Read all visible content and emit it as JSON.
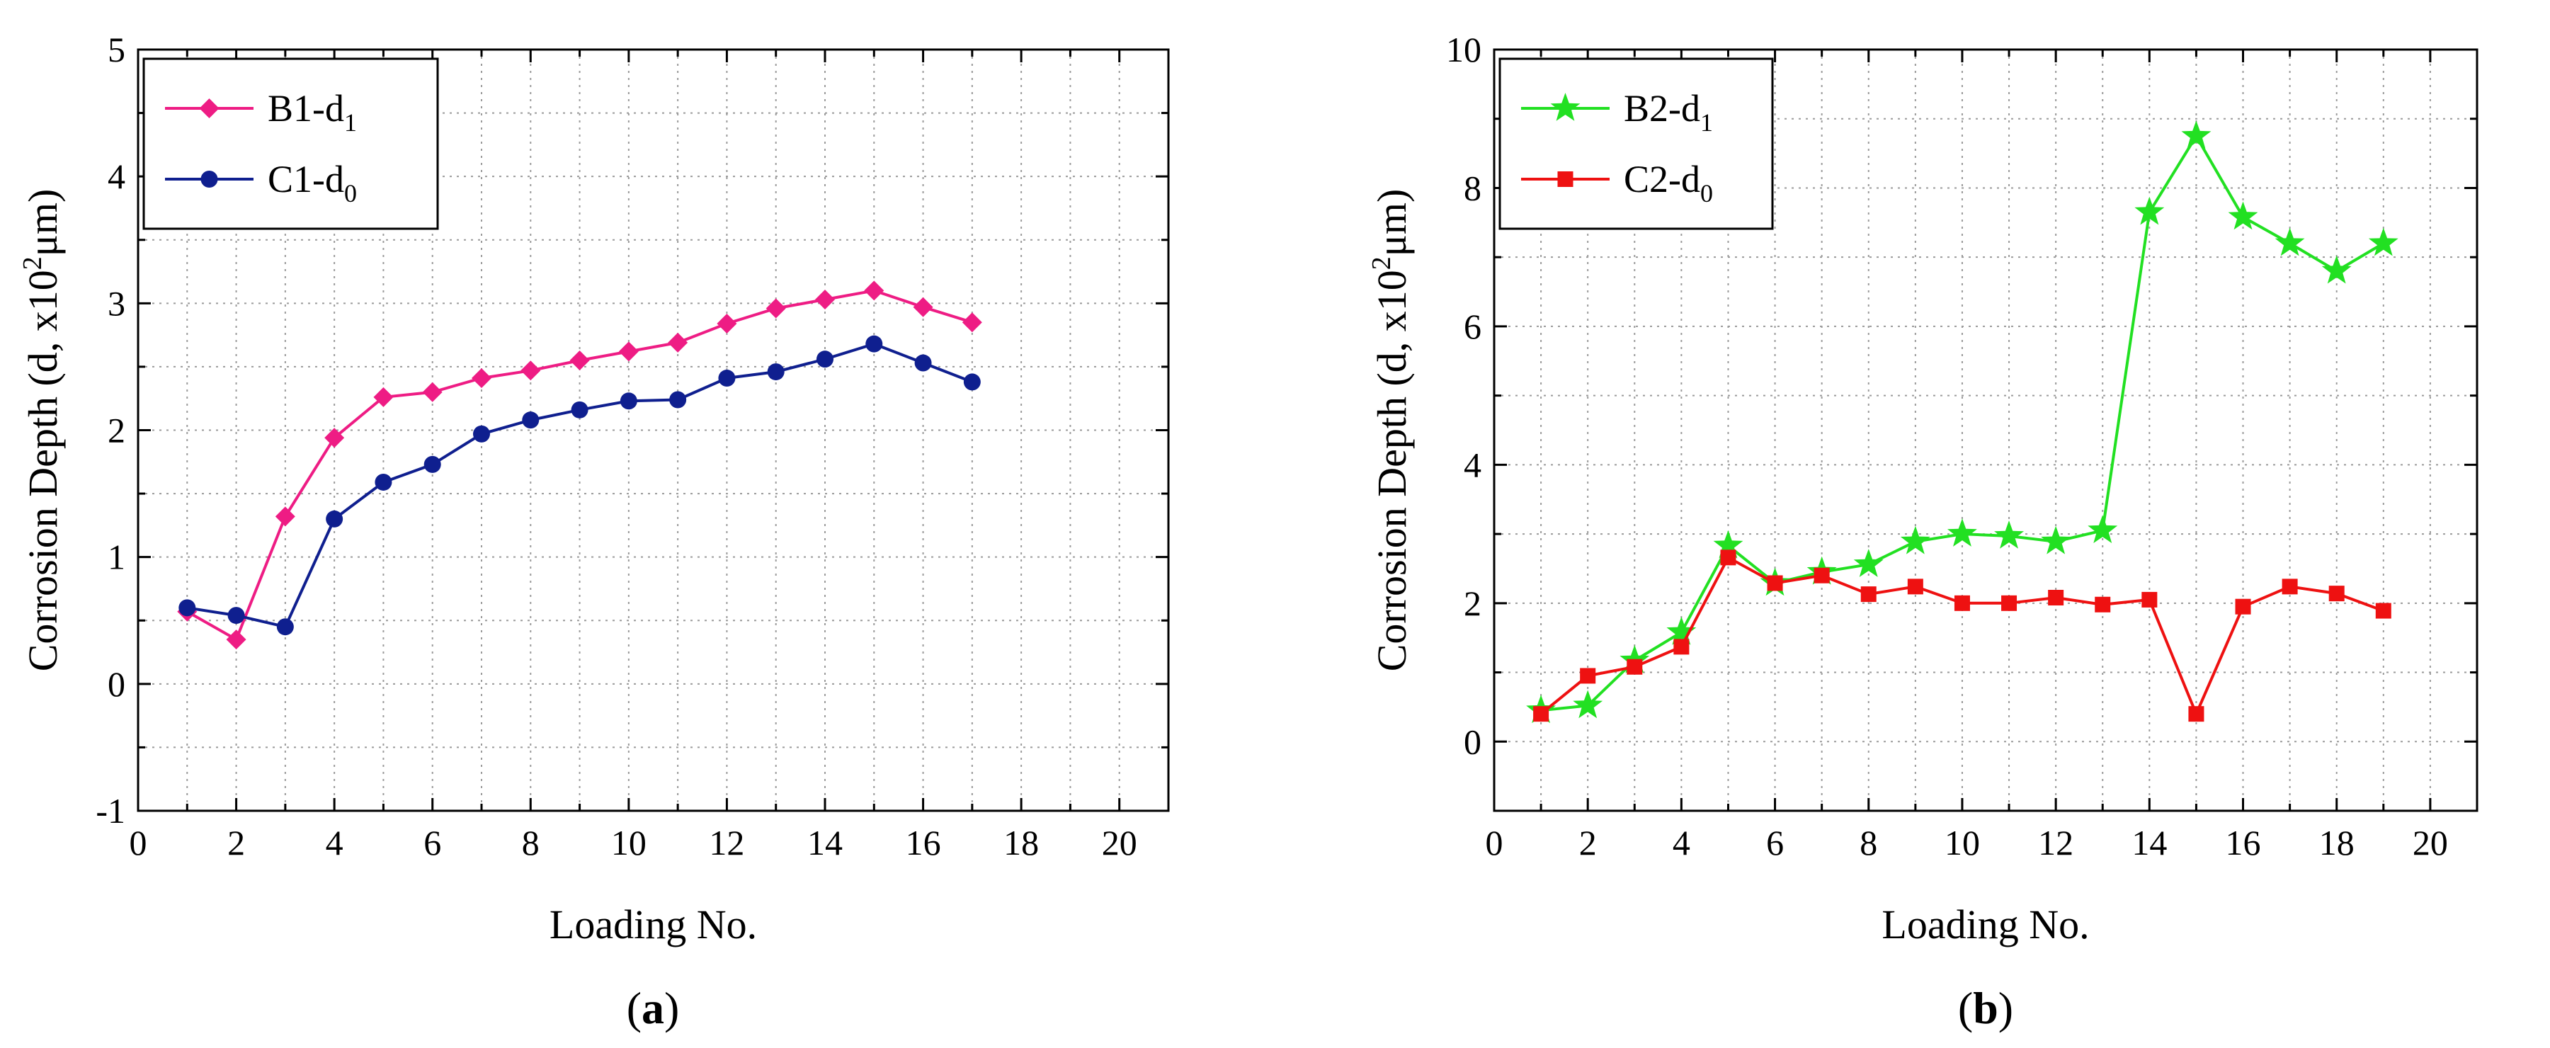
{
  "chart_data": [
    {
      "type": "line",
      "panel_label": "a",
      "xlabel": "Loading No.",
      "ylabel": "Corrosion Depth (d, x10",
      "ylabel_sup": "2",
      "ylabel_tail": "μm)",
      "xlim": [
        0,
        21
      ],
      "ylim": [
        -1,
        5
      ],
      "xticks": [
        0,
        2,
        4,
        6,
        8,
        10,
        12,
        14,
        16,
        18,
        20
      ],
      "yticks": [
        -1,
        0,
        1,
        2,
        3,
        4,
        5
      ],
      "grid": true,
      "legend_position": "top-left",
      "series": [
        {
          "name": "B1-d",
          "name_sub": "1",
          "color": "#ee1c84",
          "marker": "diamond",
          "x": [
            1,
            2,
            3,
            4,
            5,
            6,
            7,
            8,
            9,
            10,
            11,
            12,
            13,
            14,
            15,
            16,
            17
          ],
          "values": [
            0.57,
            0.35,
            1.32,
            1.94,
            2.26,
            2.3,
            2.41,
            2.47,
            2.55,
            2.62,
            2.69,
            2.84,
            2.96,
            3.03,
            3.1,
            2.97,
            2.85
          ]
        },
        {
          "name": "C1-d",
          "name_sub": "0",
          "color": "#0f1f8f",
          "marker": "circle",
          "x": [
            1,
            2,
            3,
            4,
            5,
            6,
            7,
            8,
            9,
            10,
            11,
            12,
            13,
            14,
            15,
            16,
            17
          ],
          "values": [
            0.6,
            0.54,
            0.45,
            1.3,
            1.59,
            1.73,
            1.97,
            2.08,
            2.16,
            2.23,
            2.24,
            2.41,
            2.46,
            2.56,
            2.68,
            2.53,
            2.38
          ]
        }
      ]
    },
    {
      "type": "line",
      "panel_label": "b",
      "xlabel": "Loading No.",
      "ylabel": "Corrosion Depth (d, x10",
      "ylabel_sup": "2",
      "ylabel_tail": "μm)",
      "xlim": [
        0,
        21
      ],
      "ylim": [
        -1,
        10
      ],
      "xticks": [
        0,
        2,
        4,
        6,
        8,
        10,
        12,
        14,
        16,
        18,
        20
      ],
      "yticks": [
        0,
        2,
        4,
        6,
        8,
        10
      ],
      "grid": true,
      "legend_position": "top-left",
      "series": [
        {
          "name": "B2-d",
          "name_sub": "1",
          "color": "#22e022",
          "marker": "star",
          "x": [
            1,
            2,
            3,
            4,
            5,
            6,
            7,
            8,
            9,
            10,
            11,
            12,
            13,
            14,
            15,
            16,
            17,
            18,
            19
          ],
          "values": [
            0.45,
            0.52,
            1.17,
            1.58,
            2.83,
            2.29,
            2.45,
            2.56,
            2.89,
            3.0,
            2.97,
            2.89,
            3.05,
            7.65,
            8.75,
            7.58,
            7.2,
            6.8,
            7.2
          ]
        },
        {
          "name": "C2-d",
          "name_sub": "0",
          "color": "#ee1111",
          "marker": "square",
          "x": [
            1,
            2,
            3,
            4,
            5,
            6,
            7,
            8,
            9,
            10,
            11,
            12,
            13,
            14,
            15,
            16,
            17,
            18,
            19
          ],
          "values": [
            0.4,
            0.95,
            1.08,
            1.37,
            2.66,
            2.29,
            2.4,
            2.13,
            2.24,
            2.0,
            2.0,
            2.08,
            1.98,
            2.05,
            0.4,
            1.95,
            2.24,
            2.14,
            1.89
          ]
        }
      ]
    }
  ]
}
